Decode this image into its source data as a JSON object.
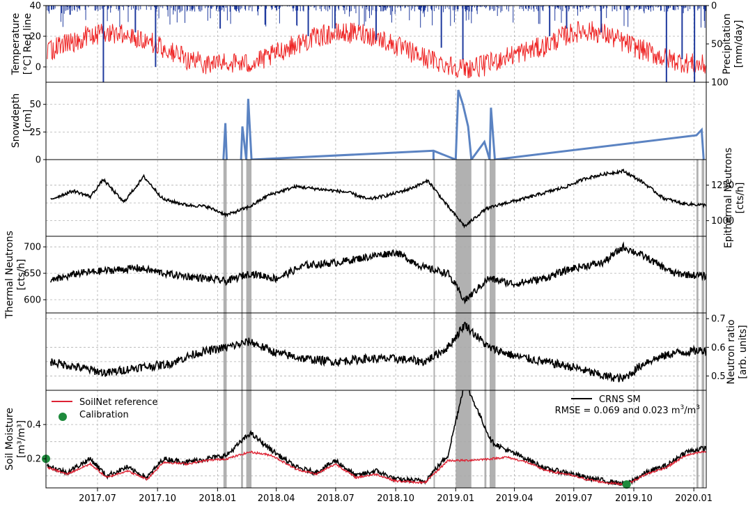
{
  "x_axis": {
    "ticks": [
      "2017.07",
      "2017.10",
      "2018.01",
      "2018.04",
      "2018.07",
      "2018.10",
      "2019.01",
      "2019.04",
      "2019.07",
      "2019.10",
      "2020.01"
    ],
    "tick_values": [
      "2017-07-01",
      "2017-10-01",
      "2018-01-01",
      "2018-04-01",
      "2018-07-01",
      "2018-10-01",
      "2019-01-01",
      "2019-04-01",
      "2019-07-01",
      "2019-10-01",
      "2020-01-01"
    ],
    "range": [
      "2017-04-13",
      "2020-01-20"
    ]
  },
  "snow_periods": [
    [
      "2018-01-10",
      "2018-01-15"
    ],
    [
      "2018-02-06",
      "2018-02-09"
    ],
    [
      "2018-02-14",
      "2018-02-22"
    ],
    [
      "2018-11-28",
      "2018-11-30"
    ],
    [
      "2019-01-01",
      "2019-01-25"
    ],
    [
      "2019-02-14",
      "2019-02-17"
    ],
    [
      "2019-02-22",
      "2019-03-03"
    ],
    [
      "2020-01-05",
      "2020-01-08"
    ],
    [
      "2020-01-13",
      "2020-01-17"
    ]
  ],
  "panels": {
    "temperature": {
      "ylabel": "Temperature\n[°C] Red line",
      "ylabel_right": "Precipitation\n[mm/day]",
      "left_ticks": [
        "40",
        "20",
        "0"
      ],
      "right_ticks": [
        "0",
        "50",
        "100"
      ],
      "left_range": [
        -10,
        40
      ],
      "right_range": [
        0,
        100
      ],
      "right_inverted": true,
      "temp_color": "#ee2222",
      "precip_color": "#1f3a9e"
    },
    "snow": {
      "ylabel": "Snowdepth\n[cm]",
      "ticks": [
        "0",
        "25",
        "50"
      ],
      "range": [
        0,
        70
      ],
      "color": "#5b83c2"
    },
    "epithermal": {
      "ylabel_right": "Epithermal Neutrons\n[cts/h]",
      "ticks": [
        "1000",
        "1250"
      ],
      "range": [
        890,
        1430
      ]
    },
    "thermal": {
      "ylabel": "Thermal Neutrons\n[cts/h]",
      "ticks": [
        "600",
        "650",
        "700"
      ],
      "range": [
        575,
        720
      ]
    },
    "ratio": {
      "ylabel_right": "Neutron ratio\n[arb. units]",
      "ticks": [
        "0.5",
        "0.6",
        "0.7"
      ],
      "range": [
        0.45,
        0.72
      ]
    },
    "soil_moisture": {
      "ylabel": "Soil Moisture\n[m³/m³]",
      "ticks": [
        "0.2",
        "0.4"
      ],
      "range": [
        0.03,
        0.6
      ],
      "reference_color": "#dd2233",
      "calibration_color": "#1e8a3c",
      "legend_reference": "SoilNet reference",
      "legend_calibration": "Calibration",
      "legend_crns": "CRNS SM",
      "rmse_prefix": "RMSE = 0.069 and 0.023 m",
      "rmse_sup": "3",
      "rmse_mid": "/m",
      "calibration_points": [
        [
          "2017-04-13",
          0.2
        ],
        [
          "2019-09-20",
          0.05
        ]
      ]
    }
  },
  "chart_data": {
    "type": "line",
    "x_unit": "date",
    "series": [
      {
        "panel": "temperature",
        "name": "Red line",
        "x": [
          "2017-04-15",
          "2017-05-15",
          "2017-06-15",
          "2017-07-15",
          "2017-08-15",
          "2017-09-15",
          "2017-10-15",
          "2017-11-15",
          "2017-12-15",
          "2018-01-15",
          "2018-02-15",
          "2018-03-15",
          "2018-04-15",
          "2018-05-15",
          "2018-06-15",
          "2018-07-15",
          "2018-08-15",
          "2018-09-15",
          "2018-10-15",
          "2018-11-15",
          "2018-12-15",
          "2019-01-15",
          "2019-02-15",
          "2019-03-15",
          "2019-04-15",
          "2019-05-15",
          "2019-06-15",
          "2019-07-15",
          "2019-08-15",
          "2019-09-15",
          "2019-10-15",
          "2019-11-15",
          "2019-12-15",
          "2020-01-15"
        ],
        "values": [
          10,
          15,
          20,
          22,
          22,
          17,
          11,
          5,
          2,
          3,
          2,
          5,
          12,
          17,
          21,
          22,
          22,
          17,
          11,
          6,
          2,
          -1,
          1,
          6,
          10,
          13,
          20,
          24,
          22,
          16,
          11,
          6,
          3,
          1
        ]
      },
      {
        "panel": "temperature",
        "name": "Precipitation",
        "x": [
          "2017-05-20",
          "2017-07-10",
          "2017-08-28",
          "2017-09-28",
          "2018-01-05",
          "2018-03-15",
          "2018-05-20",
          "2018-06-30",
          "2018-09-01",
          "2018-12-10",
          "2019-01-12",
          "2019-05-25",
          "2019-06-20",
          "2019-08-12",
          "2019-11-20",
          "2019-12-14",
          "2020-01-02"
        ],
        "values": [
          12,
          100,
          35,
          80,
          30,
          25,
          40,
          30,
          45,
          55,
          70,
          40,
          30,
          35,
          100,
          70,
          100
        ]
      },
      {
        "panel": "snow",
        "name": "Snowdepth",
        "x": [
          "2018-01-10",
          "2018-01-13",
          "2018-01-15",
          "2018-02-06",
          "2018-02-08",
          "2018-02-14",
          "2018-02-17",
          "2018-02-22",
          "2018-11-28",
          "2019-01-01",
          "2019-01-05",
          "2019-01-12",
          "2019-01-20",
          "2019-01-25",
          "2019-02-14",
          "2019-02-22",
          "2019-02-24",
          "2019-03-02",
          "2020-01-05",
          "2020-01-13",
          "2020-01-16"
        ],
        "values": [
          0,
          33,
          0,
          0,
          30,
          0,
          55,
          0,
          8,
          0,
          63,
          50,
          30,
          0,
          16,
          0,
          47,
          0,
          22,
          27,
          0
        ]
      },
      {
        "panel": "epithermal",
        "name": "Epithermal Neutrons",
        "x": [
          "2017-04-20",
          "2017-05-25",
          "2017-06-20",
          "2017-07-10",
          "2017-08-10",
          "2017-09-10",
          "2017-10-10",
          "2017-11-15",
          "2017-12-15",
          "2018-01-15",
          "2018-02-20",
          "2018-03-20",
          "2018-05-01",
          "2018-06-10",
          "2018-07-20",
          "2018-08-20",
          "2018-09-20",
          "2018-10-20",
          "2018-11-20",
          "2018-12-20",
          "2019-01-15",
          "2019-02-15",
          "2019-03-15",
          "2019-04-20",
          "2019-05-20",
          "2019-06-20",
          "2019-07-20",
          "2019-08-20",
          "2019-09-15",
          "2019-10-15",
          "2019-11-15",
          "2019-12-15",
          "2020-01-15"
        ],
        "values": [
          1150,
          1210,
          1170,
          1290,
          1130,
          1310,
          1150,
          1110,
          1100,
          1040,
          1100,
          1180,
          1240,
          1220,
          1200,
          1150,
          1180,
          1220,
          1280,
          1100,
          960,
          1080,
          1120,
          1160,
          1200,
          1240,
          1300,
          1330,
          1350,
          1270,
          1160,
          1120,
          1110
        ]
      },
      {
        "panel": "thermal",
        "name": "Thermal Neutrons",
        "x": [
          "2017-04-20",
          "2017-06-01",
          "2017-07-15",
          "2017-09-01",
          "2017-10-20",
          "2017-12-15",
          "2018-01-15",
          "2018-02-20",
          "2018-04-01",
          "2018-05-15",
          "2018-07-01",
          "2018-08-15",
          "2018-10-01",
          "2018-11-15",
          "2018-12-20",
          "2019-01-15",
          "2019-02-20",
          "2019-04-01",
          "2019-05-15",
          "2019-07-01",
          "2019-08-15",
          "2019-09-15",
          "2019-10-20",
          "2019-12-01",
          "2020-01-15"
        ],
        "values": [
          635,
          650,
          655,
          660,
          648,
          640,
          635,
          650,
          640,
          665,
          670,
          680,
          690,
          660,
          650,
          598,
          640,
          630,
          640,
          660,
          670,
          700,
          680,
          650,
          645
        ]
      },
      {
        "panel": "ratio",
        "name": "Neutron ratio",
        "x": [
          "2017-04-20",
          "2017-06-01",
          "2017-07-15",
          "2017-09-01",
          "2017-10-15",
          "2017-12-01",
          "2018-01-15",
          "2018-02-20",
          "2018-04-01",
          "2018-05-15",
          "2018-07-01",
          "2018-08-15",
          "2018-10-01",
          "2018-11-15",
          "2018-12-20",
          "2019-01-15",
          "2019-02-20",
          "2019-04-01",
          "2019-05-15",
          "2019-07-01",
          "2019-08-15",
          "2019-09-15",
          "2019-10-20",
          "2019-12-01",
          "2020-01-15"
        ],
        "values": [
          0.55,
          0.53,
          0.51,
          0.53,
          0.54,
          0.58,
          0.6,
          0.62,
          0.58,
          0.56,
          0.55,
          0.56,
          0.56,
          0.55,
          0.6,
          0.68,
          0.6,
          0.57,
          0.55,
          0.53,
          0.5,
          0.49,
          0.55,
          0.58,
          0.59
        ]
      },
      {
        "panel": "soil_moisture",
        "name": "CRNS SM",
        "x": [
          "2017-04-15",
          "2017-05-15",
          "2017-06-20",
          "2017-07-15",
          "2017-08-15",
          "2017-09-15",
          "2017-10-10",
          "2017-11-15",
          "2017-12-15",
          "2018-01-15",
          "2018-02-20",
          "2018-03-25",
          "2018-05-01",
          "2018-06-01",
          "2018-07-01",
          "2018-08-01",
          "2018-09-01",
          "2018-10-01",
          "2018-11-15",
          "2018-12-20",
          "2019-01-15",
          "2019-02-25",
          "2019-03-20",
          "2019-04-20",
          "2019-05-20",
          "2019-06-20",
          "2019-07-20",
          "2019-08-20",
          "2019-09-20",
          "2019-10-20",
          "2019-11-20",
          "2019-12-20",
          "2020-01-15"
        ],
        "values": [
          0.16,
          0.12,
          0.2,
          0.1,
          0.15,
          0.09,
          0.2,
          0.18,
          0.2,
          0.22,
          0.35,
          0.25,
          0.15,
          0.12,
          0.19,
          0.1,
          0.13,
          0.08,
          0.07,
          0.22,
          0.65,
          0.3,
          0.25,
          0.2,
          0.14,
          0.12,
          0.09,
          0.07,
          0.05,
          0.12,
          0.16,
          0.24,
          0.26
        ]
      },
      {
        "panel": "soil_moisture",
        "name": "SoilNet reference",
        "x": [
          "2017-04-15",
          "2017-05-15",
          "2017-06-20",
          "2017-07-15",
          "2017-08-15",
          "2017-09-15",
          "2017-10-10",
          "2017-11-15",
          "2017-12-15",
          "2018-01-15",
          "2018-02-20",
          "2018-03-25",
          "2018-05-01",
          "2018-06-01",
          "2018-07-01",
          "2018-08-01",
          "2018-09-01",
          "2018-10-01",
          "2018-11-15",
          "2018-12-20",
          "2019-01-15",
          "2019-02-25",
          "2019-03-20",
          "2019-04-20",
          "2019-05-20",
          "2019-06-20",
          "2019-07-20",
          "2019-08-20",
          "2019-09-20",
          "2019-10-20",
          "2019-11-20",
          "2019-12-20",
          "2020-01-15"
        ],
        "values": [
          0.15,
          0.11,
          0.17,
          0.09,
          0.13,
          0.08,
          0.18,
          0.17,
          0.19,
          0.2,
          0.24,
          0.22,
          0.14,
          0.11,
          0.17,
          0.09,
          0.11,
          0.07,
          0.06,
          0.19,
          0.19,
          0.2,
          0.21,
          0.18,
          0.13,
          0.11,
          0.08,
          0.06,
          0.05,
          0.11,
          0.15,
          0.22,
          0.24
        ]
      }
    ]
  }
}
